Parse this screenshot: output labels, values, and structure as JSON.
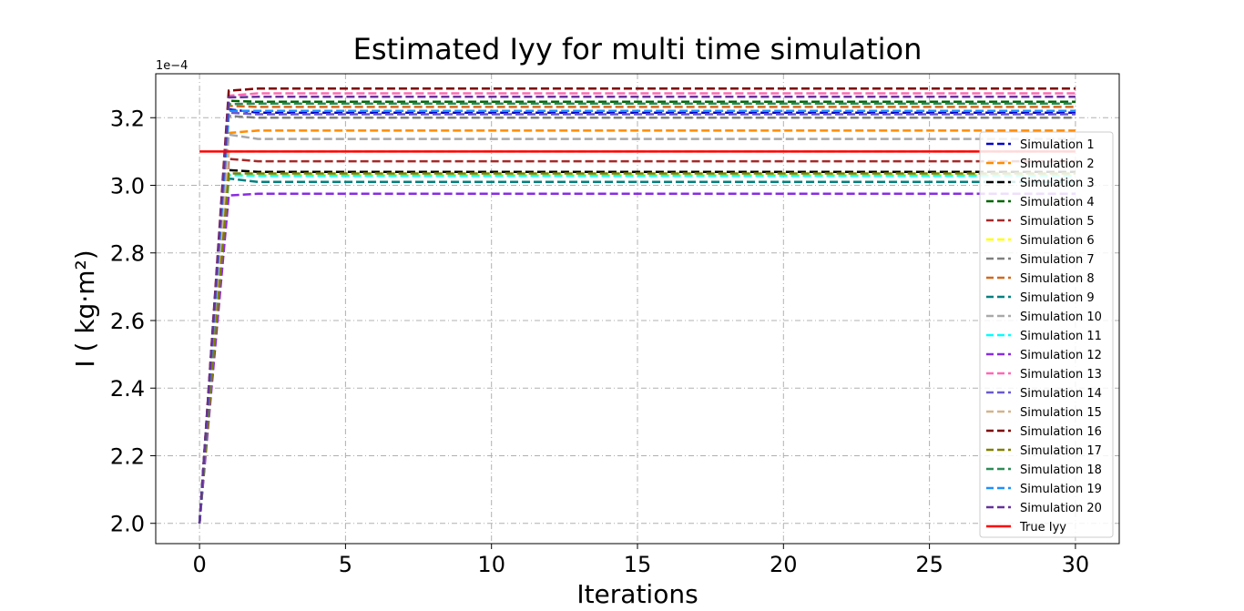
{
  "chart_data": {
    "type": "line",
    "title": "Estimated Iyy for multi time simulation",
    "xlabel": "Iterations",
    "ylabel": "I ( kg·m²)",
    "y_offset_label": "1e−4",
    "xlim": [
      -1.5,
      31.5
    ],
    "ylim": [
      1.94,
      3.33
    ],
    "x_ticks": [
      0,
      5,
      10,
      15,
      20,
      25,
      30
    ],
    "y_ticks": [
      2.0,
      2.2,
      2.4,
      2.6,
      2.8,
      3.0,
      3.2
    ],
    "y_tick_labels": [
      "2.0",
      "2.2",
      "2.4",
      "2.6",
      "2.8",
      "3.0",
      "3.2"
    ],
    "grid": true,
    "legend_position": "right",
    "x": [
      0,
      1,
      2,
      3,
      4,
      5,
      6,
      7,
      8,
      9,
      10,
      11,
      12,
      13,
      14,
      15,
      16,
      17,
      18,
      19,
      20,
      21,
      22,
      23,
      24,
      25,
      26,
      27,
      28,
      29,
      30
    ],
    "series": [
      {
        "name": "Simulation 1",
        "color": "#0000cc",
        "start": 2.0,
        "first": 3.225,
        "final": 3.215
      },
      {
        "name": "Simulation 2",
        "color": "#ff8c00",
        "start": 2.0,
        "first": 3.155,
        "final": 3.162
      },
      {
        "name": "Simulation 3",
        "color": "#000000",
        "start": 2.0,
        "first": 3.045,
        "final": 3.04
      },
      {
        "name": "Simulation 4",
        "color": "#006400",
        "start": 2.0,
        "first": 3.25,
        "final": 3.247
      },
      {
        "name": "Simulation 5",
        "color": "#a52a2a",
        "start": 2.0,
        "first": 3.078,
        "final": 3.071
      },
      {
        "name": "Simulation 6",
        "color": "#ffff00",
        "start": 2.0,
        "first": 3.03,
        "final": 3.032
      },
      {
        "name": "Simulation 7",
        "color": "#808080",
        "start": 2.0,
        "first": 3.205,
        "final": 3.2
      },
      {
        "name": "Simulation 8",
        "color": "#d2691e",
        "start": 2.0,
        "first": 3.235,
        "final": 3.232
      },
      {
        "name": "Simulation 9",
        "color": "#008080",
        "start": 2.0,
        "first": 3.02,
        "final": 3.01
      },
      {
        "name": "Simulation 10",
        "color": "#a9a9a9",
        "start": 2.0,
        "first": 3.15,
        "final": 3.137
      },
      {
        "name": "Simulation 11",
        "color": "#00ffff",
        "start": 2.0,
        "first": 3.03,
        "final": 3.028
      },
      {
        "name": "Simulation 12",
        "color": "#8a2be2",
        "start": 2.0,
        "first": 2.97,
        "final": 2.975
      },
      {
        "name": "Simulation 13",
        "color": "#ff69b4",
        "start": 2.0,
        "first": 3.265,
        "final": 3.272
      },
      {
        "name": "Simulation 14",
        "color": "#6a5acd",
        "start": 2.0,
        "first": 3.215,
        "final": 3.21
      },
      {
        "name": "Simulation 15",
        "color": "#d2b48c",
        "start": 2.0,
        "first": 3.1,
        "final": 3.1
      },
      {
        "name": "Simulation 16",
        "color": "#800000",
        "start": 2.0,
        "first": 3.28,
        "final": 3.286
      },
      {
        "name": "Simulation 17",
        "color": "#808000",
        "start": 2.0,
        "first": 3.035,
        "final": 3.035
      },
      {
        "name": "Simulation 18",
        "color": "#2e8b57",
        "start": 2.0,
        "first": 3.24,
        "final": 3.242
      },
      {
        "name": "Simulation 19",
        "color": "#1e90ff",
        "start": 2.0,
        "first": 3.22,
        "final": 3.22
      },
      {
        "name": "Simulation 20",
        "color": "#663399",
        "start": 2.0,
        "first": 3.26,
        "final": 3.262
      }
    ],
    "reference": {
      "name": "True Iyy",
      "color": "#ff0000",
      "value": 3.1
    }
  }
}
